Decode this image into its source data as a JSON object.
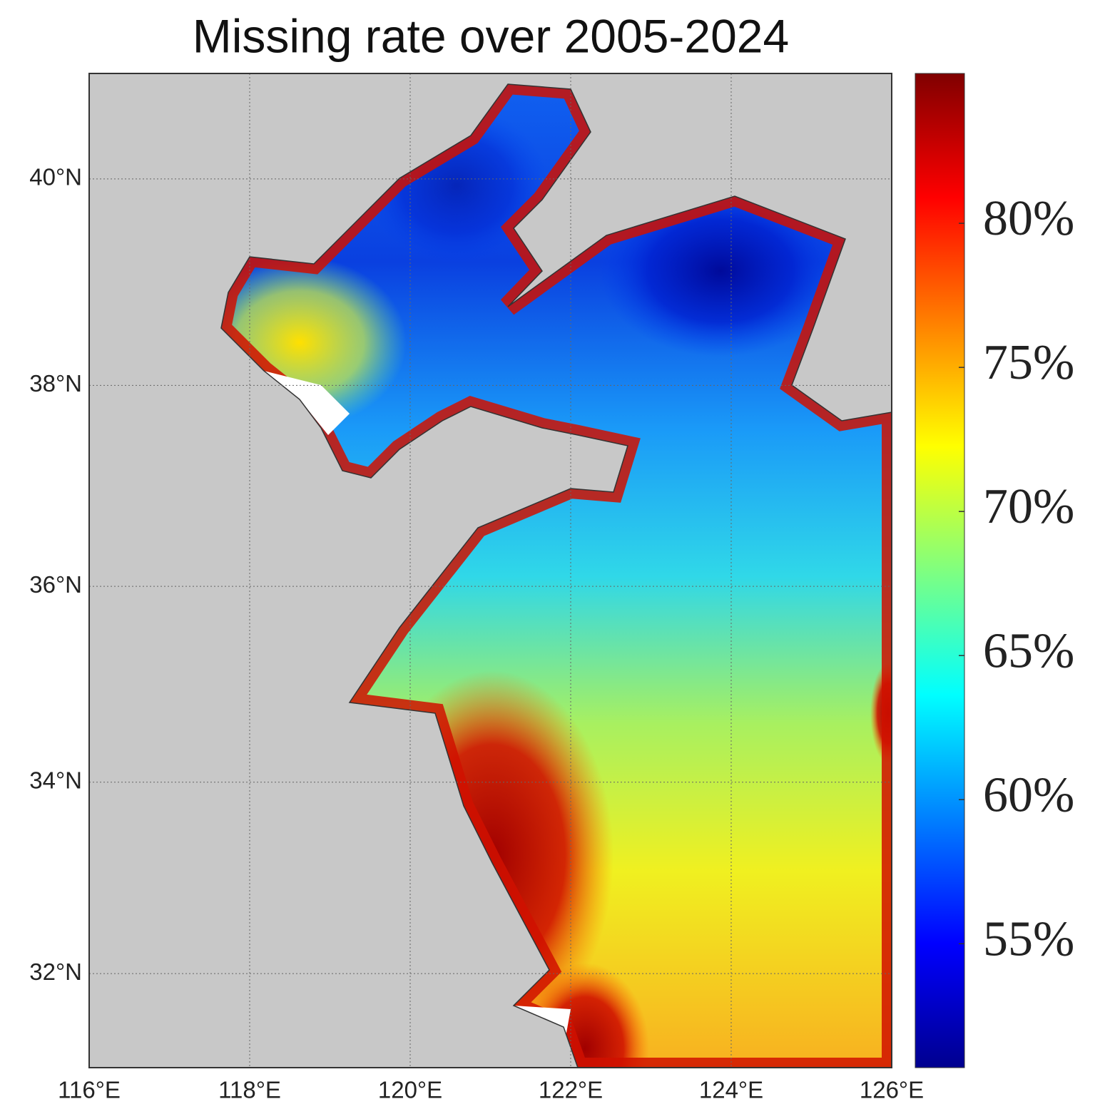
{
  "chart_data": {
    "type": "map",
    "title": "Missing rate over 2005-2024",
    "projection": "mercator",
    "xlim": [
      116,
      126
    ],
    "xticks": [
      {
        "value": 116,
        "label": "116°E"
      },
      {
        "value": 118,
        "label": "118°E"
      },
      {
        "value": 120,
        "label": "120°E"
      },
      {
        "value": 122,
        "label": "122°E"
      },
      {
        "value": 124,
        "label": "124°E"
      },
      {
        "value": 126,
        "label": "126°E"
      }
    ],
    "ylim": [
      31,
      41
    ],
    "yticks": [
      {
        "value": 32,
        "label": "32°N"
      },
      {
        "value": 34,
        "label": "34°N"
      },
      {
        "value": 36,
        "label": "36°N"
      },
      {
        "value": 38,
        "label": "38°N"
      },
      {
        "value": 40,
        "label": "40°N"
      }
    ],
    "grid": true,
    "colorbar": {
      "clim": [
        50.7,
        85.2
      ],
      "ticks": [
        {
          "value": 55,
          "label": "55%"
        },
        {
          "value": 60,
          "label": "60%"
        },
        {
          "value": 65,
          "label": "65%"
        },
        {
          "value": 70,
          "label": "70%"
        },
        {
          "value": 75,
          "label": "75%"
        },
        {
          "value": 80,
          "label": "80%"
        }
      ]
    }
  }
}
